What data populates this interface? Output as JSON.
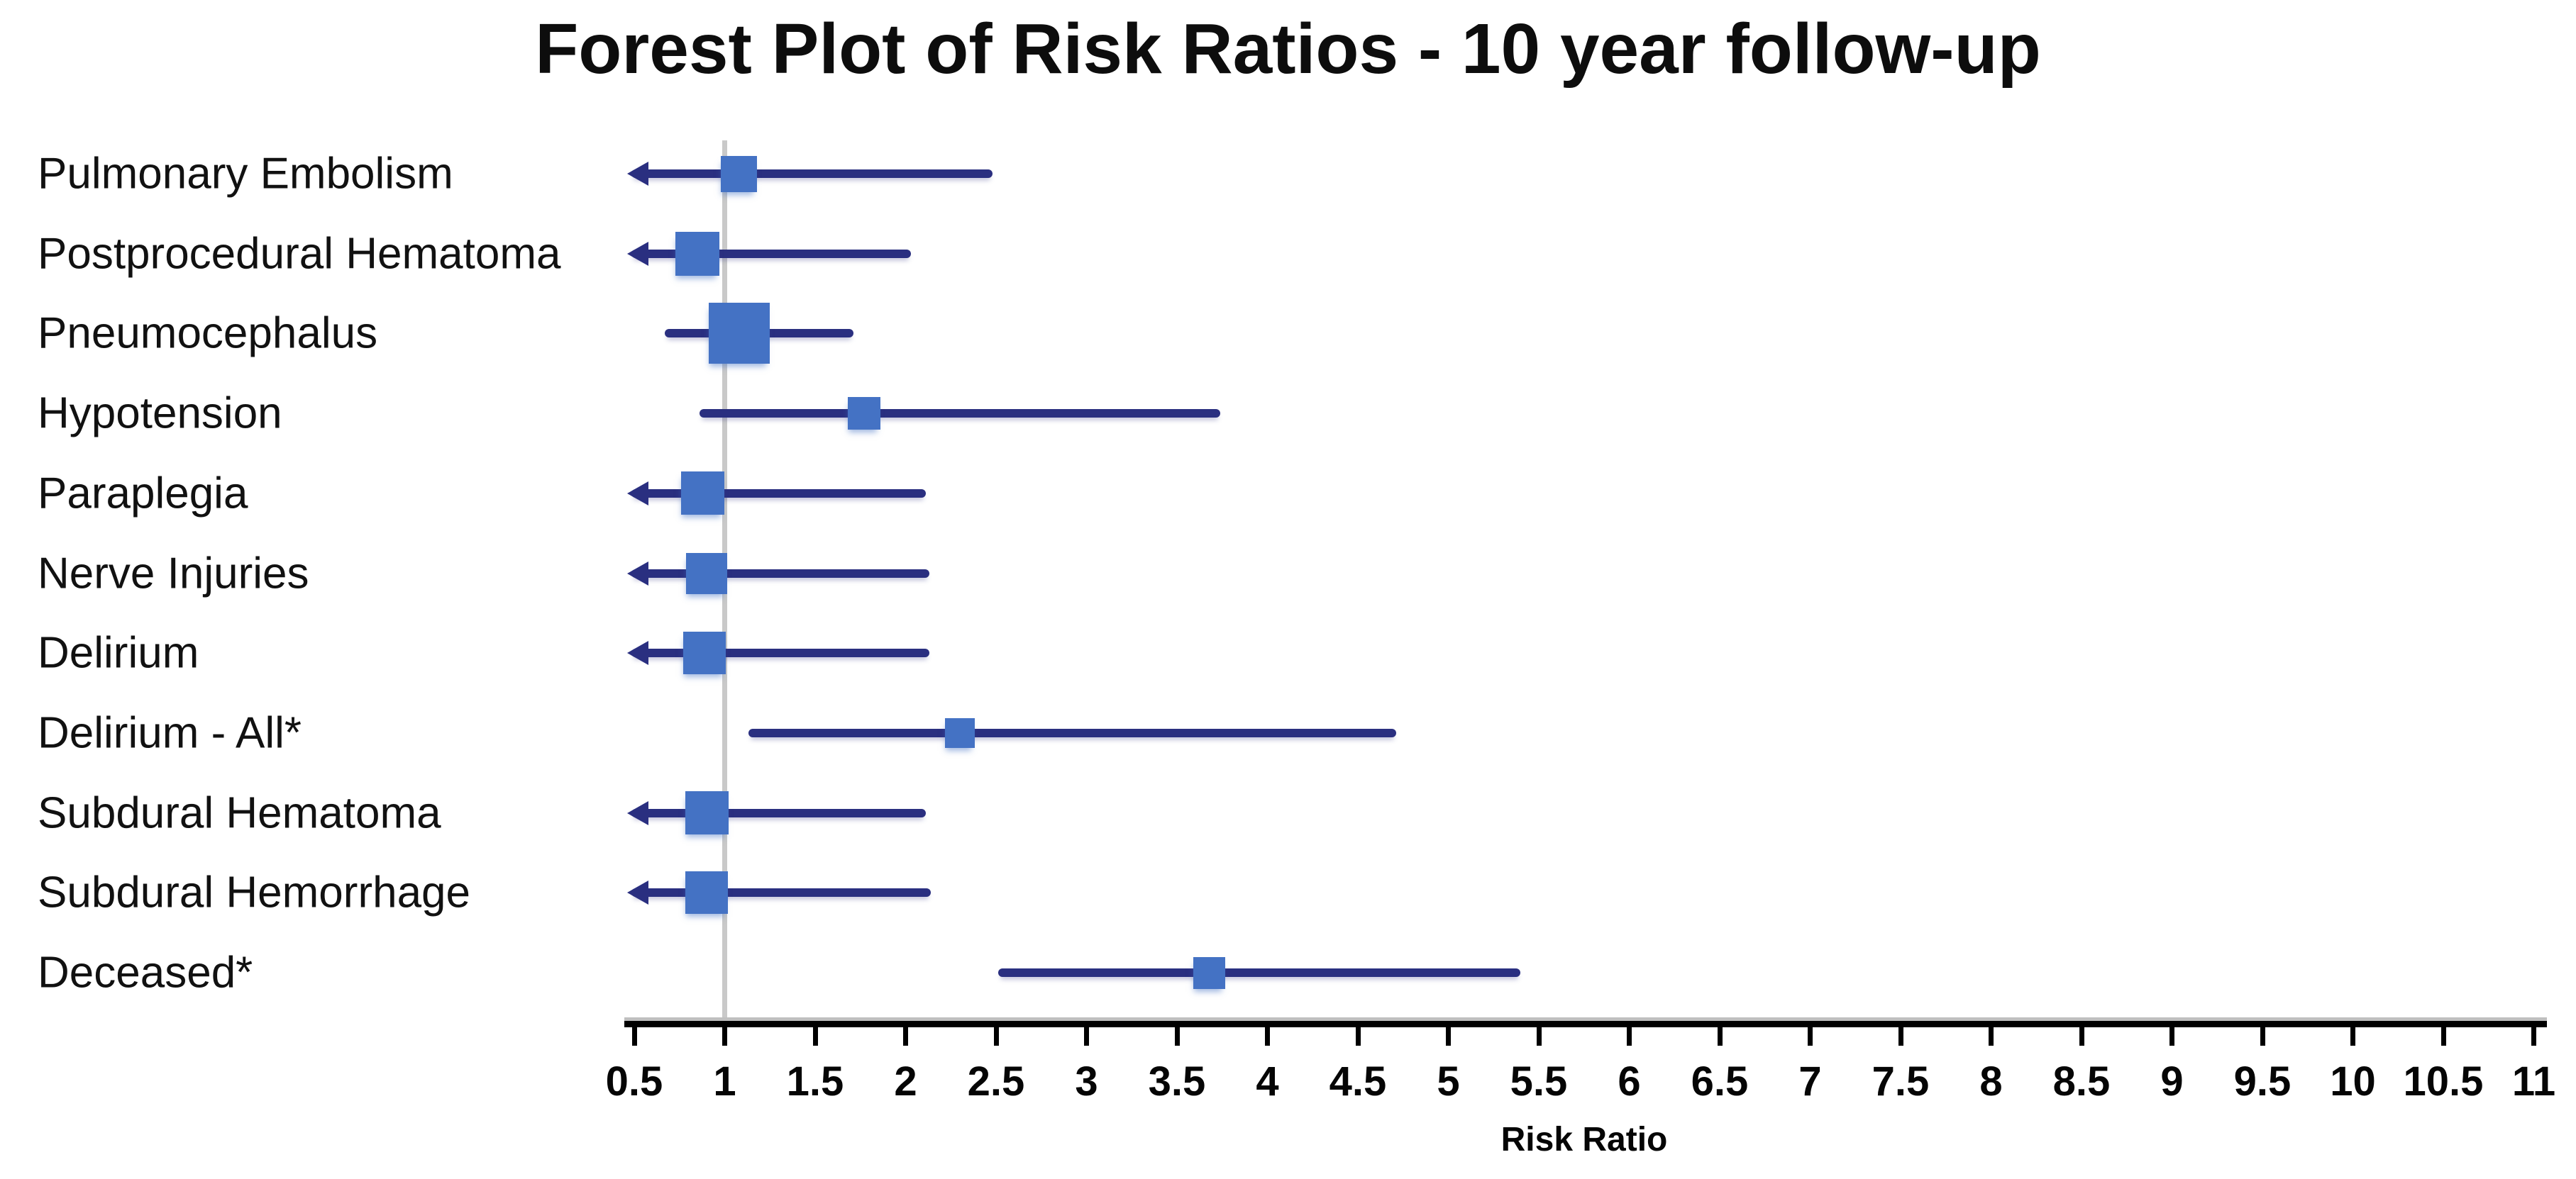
{
  "title": "Forest Plot of Risk Ratios - 10 year follow-up",
  "chart_data": {
    "type": "scatter",
    "variant": "forest-plot",
    "title": "Forest Plot of Risk Ratios - 10 year follow-up",
    "xlabel": "Risk Ratio",
    "x_axis": {
      "min": 0.5,
      "max": 11,
      "tick_step": 0.5,
      "tick_labels": [
        "0.5",
        "1",
        "1.5",
        "2",
        "2.5",
        "3",
        "3.5",
        "4",
        "4.5",
        "5",
        "5.5",
        "6",
        "6.5",
        "7",
        "7.5",
        "8",
        "8.5",
        "9",
        "9.5",
        "10",
        "10.5",
        "11"
      ]
    },
    "reference_line_x": 1,
    "grid": false,
    "legend": false,
    "rows": [
      {
        "label": "Pulmonary Embolism",
        "rr": 1.08,
        "ci_low": 0.5,
        "ci_low_clipped": true,
        "ci_high": 2.48,
        "weight": 51
      },
      {
        "label": "Postprocedural Hematoma",
        "rr": 0.85,
        "ci_low": 0.5,
        "ci_low_clipped": true,
        "ci_high": 2.03,
        "weight": 62
      },
      {
        "label": "Pneumocephalus",
        "rr": 1.08,
        "ci_low": 0.67,
        "ci_low_clipped": false,
        "ci_high": 1.71,
        "weight": 86
      },
      {
        "label": "Hypotension",
        "rr": 1.77,
        "ci_low": 0.86,
        "ci_low_clipped": false,
        "ci_high": 3.74,
        "weight": 46
      },
      {
        "label": "Paraplegia",
        "rr": 0.88,
        "ci_low": 0.5,
        "ci_low_clipped": true,
        "ci_high": 2.11,
        "weight": 61
      },
      {
        "label": "Nerve Injuries",
        "rr": 0.9,
        "ci_low": 0.5,
        "ci_low_clipped": true,
        "ci_high": 2.13,
        "weight": 58
      },
      {
        "label": "Delirium",
        "rr": 0.89,
        "ci_low": 0.5,
        "ci_low_clipped": true,
        "ci_high": 2.13,
        "weight": 60
      },
      {
        "label": "Delirium - All*",
        "rr": 2.3,
        "ci_low": 1.13,
        "ci_low_clipped": false,
        "ci_high": 4.71,
        "weight": 42
      },
      {
        "label": "Subdural Hematoma",
        "rr": 0.9,
        "ci_low": 0.5,
        "ci_low_clipped": true,
        "ci_high": 2.11,
        "weight": 61
      },
      {
        "label": "Subdural Hemorrhage",
        "rr": 0.9,
        "ci_low": 0.5,
        "ci_low_clipped": true,
        "ci_high": 2.14,
        "weight": 60
      },
      {
        "label": "Deceased*",
        "rr": 3.68,
        "ci_low": 2.51,
        "ci_low_clipped": false,
        "ci_high": 5.4,
        "weight": 45
      }
    ],
    "colors": {
      "marker": "#4472c4",
      "ci_line": "#2a2f80",
      "reference_line": "#c9c9c9",
      "axis": "#000000",
      "text": "#000000"
    }
  }
}
